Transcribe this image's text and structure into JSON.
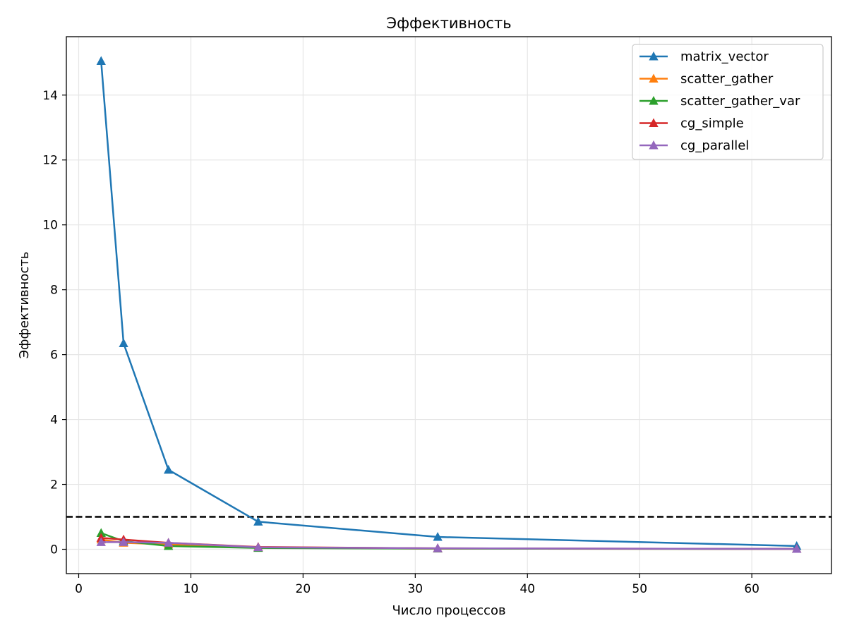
{
  "chart_data": {
    "type": "line",
    "title": "Эффективность",
    "xlabel": "Число процессов",
    "ylabel": "Эффективность",
    "xlim": [
      -1.1,
      67.1
    ],
    "ylim": [
      -0.75,
      15.8
    ],
    "xticks": [
      0,
      10,
      20,
      30,
      40,
      50,
      60
    ],
    "yticks": [
      0,
      2,
      4,
      6,
      8,
      10,
      12,
      14
    ],
    "grid": true,
    "legend_position": "top-right",
    "reference_line": {
      "y": 1.0,
      "color": "#000000",
      "style": "dashed"
    },
    "x": [
      2,
      4,
      8,
      16,
      32,
      64
    ],
    "series": [
      {
        "name": "matrix_vector",
        "color": "#1f77b4",
        "marker": "triangle",
        "values": [
          15.05,
          6.35,
          2.45,
          0.85,
          0.38,
          0.1
        ]
      },
      {
        "name": "scatter_gather",
        "color": "#ff7f0e",
        "marker": "triangle",
        "values": [
          0.3,
          0.2,
          0.15,
          0.05,
          0.02,
          0.01
        ]
      },
      {
        "name": "scatter_gather_var",
        "color": "#2ca02c",
        "marker": "triangle",
        "values": [
          0.5,
          0.25,
          0.1,
          0.04,
          0.02,
          0.01
        ]
      },
      {
        "name": "cg_simple",
        "color": "#d62728",
        "marker": "triangle",
        "values": [
          0.35,
          0.3,
          0.2,
          0.07,
          0.03,
          0.01
        ]
      },
      {
        "name": "cg_parallel",
        "color": "#9467bd",
        "marker": "triangle",
        "values": [
          0.22,
          0.22,
          0.2,
          0.06,
          0.03,
          0.01
        ]
      }
    ]
  }
}
